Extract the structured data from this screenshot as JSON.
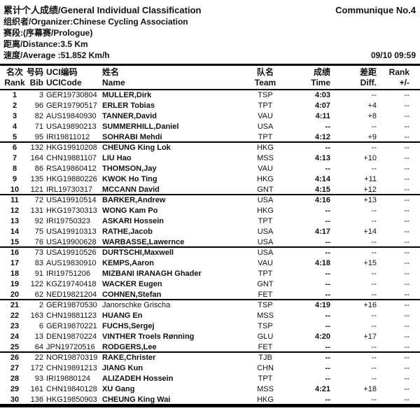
{
  "header": {
    "title": "累计个人成绩/General Individual Classification",
    "communique": "Communique No.4",
    "organizer": "组织者/Organizer:Chinese Cycling Association",
    "stage": "赛段:(序幕赛/Prologue)",
    "distance": "距离/Distance:3.5 Km",
    "average": "速度/Average :51.852 Km/h",
    "datetime": "09/10 09:59"
  },
  "colors": {
    "text": "#111111",
    "line": "#000000",
    "background": "#ffffff"
  },
  "table": {
    "columns": [
      {
        "cn": "名次",
        "en": "Rank"
      },
      {
        "cn": "号码",
        "en": "Bib"
      },
      {
        "cn": "UCI编码",
        "en": "UCICode"
      },
      {
        "cn": "姓名",
        "en": "Name"
      },
      {
        "cn": "队名",
        "en": "Team"
      },
      {
        "cn": "成绩",
        "en": "Time"
      },
      {
        "cn": "差距",
        "en": "Diff."
      },
      {
        "cn": "Rank",
        "en": "+/-"
      }
    ],
    "rows": [
      {
        "rank": "1",
        "bib": "3",
        "uci": "GER19730804",
        "name": "MULLER,Dirk",
        "team": "TSP",
        "time": "4:03",
        "diff": "--",
        "change": "--"
      },
      {
        "rank": "2",
        "bib": "96",
        "uci": "GER19790517",
        "name": "ERLER Tobias",
        "team": "TPT",
        "time": "4:07",
        "diff": "+4",
        "change": "--"
      },
      {
        "rank": "3",
        "bib": "82",
        "uci": "AUS19840930",
        "name": "TANNER,David",
        "team": "VAU",
        "time": "4:11",
        "diff": "+8",
        "change": "--"
      },
      {
        "rank": "4",
        "bib": "71",
        "uci": "USA19890213",
        "name": "SUMMERHILL,Daniel",
        "team": "USA",
        "time": "--",
        "diff": "--",
        "change": "--"
      },
      {
        "rank": "5",
        "bib": "95",
        "uci": "IRI19811012",
        "name": "SOHRABI Mehdi",
        "team": "TPT",
        "time": "4:12",
        "diff": "+9",
        "change": "--"
      },
      {
        "rank": "6",
        "bib": "132",
        "uci": "HKG19910208",
        "name": "CHEUNG King Lok",
        "team": "HKG",
        "time": "--",
        "diff": "--",
        "change": "--"
      },
      {
        "rank": "7",
        "bib": "164",
        "uci": "CHN19881107",
        "name": "LIU Hao",
        "team": "MSS",
        "time": "4:13",
        "diff": "+10",
        "change": "--"
      },
      {
        "rank": "8",
        "bib": "86",
        "uci": "RSA19860412",
        "name": "THOMSON,Jay",
        "team": "VAU",
        "time": "--",
        "diff": "--",
        "change": "--"
      },
      {
        "rank": "9",
        "bib": "135",
        "uci": "HKG19880226",
        "name": "KWOK Ho Ting",
        "team": "HKG",
        "time": "4:14",
        "diff": "+11",
        "change": "--"
      },
      {
        "rank": "10",
        "bib": "121",
        "uci": "IRL19730317",
        "name": "MCCANN David",
        "team": "GNT",
        "time": "4:15",
        "diff": "+12",
        "change": "--"
      },
      {
        "rank": "11",
        "bib": "72",
        "uci": "USA19910514",
        "name": "BARKER,Andrew",
        "team": "USA",
        "time": "4:16",
        "diff": "+13",
        "change": "--"
      },
      {
        "rank": "12",
        "bib": "131",
        "uci": "HKG19730313",
        "name": "WONG Kam Po",
        "team": "HKG",
        "time": "--",
        "diff": "--",
        "change": "--"
      },
      {
        "rank": "13",
        "bib": "92",
        "uci": "IRI19750323",
        "name": "ASKARI Hossein",
        "team": "TPT",
        "time": "--",
        "diff": "--",
        "change": "--"
      },
      {
        "rank": "14",
        "bib": "75",
        "uci": "USA19910313",
        "name": "RATHE,Jacob",
        "team": "USA",
        "time": "4:17",
        "diff": "+14",
        "change": "--"
      },
      {
        "rank": "15",
        "bib": "76",
        "uci": "USA19900628",
        "name": "WARBASSE,Lawernce",
        "team": "USA",
        "time": "--",
        "diff": "--",
        "change": "--"
      },
      {
        "rank": "16",
        "bib": "73",
        "uci": "USA19910526",
        "name": "DURTSCHI,Maxwell",
        "team": "USA",
        "time": "--",
        "diff": "--",
        "change": "--"
      },
      {
        "rank": "17",
        "bib": "83",
        "uci": "AUS19830910",
        "name": "KEMPS,Aaron",
        "team": "VAU",
        "time": "4:18",
        "diff": "+15",
        "change": "--"
      },
      {
        "rank": "18",
        "bib": "91",
        "uci": "IRI19751206",
        "name": "MIZBANI IRANAGH Ghader",
        "team": "TPT",
        "time": "--",
        "diff": "--",
        "change": "--"
      },
      {
        "rank": "19",
        "bib": "122",
        "uci": "KGZ19740418",
        "name": "WACKER Eugen",
        "team": "GNT",
        "time": "--",
        "diff": "--",
        "change": "--"
      },
      {
        "rank": "20",
        "bib": "62",
        "uci": "NED19821204",
        "name": "COHNEN,Stefan",
        "team": "FET",
        "time": "--",
        "diff": "--",
        "change": "--"
      },
      {
        "rank": "21",
        "bib": "2",
        "uci": "GER19870530",
        "name": "Janorschke Grischa",
        "team": "TSP",
        "time": "4:19",
        "diff": "+16",
        "change": "--",
        "name_regular": true
      },
      {
        "rank": "22",
        "bib": "163",
        "uci": "CHN19881123",
        "name": "HUANG En",
        "team": "MSS",
        "time": "--",
        "diff": "--",
        "change": "--"
      },
      {
        "rank": "23",
        "bib": "6",
        "uci": "GER19870221",
        "name": "FUCHS,Sergej",
        "team": "TSP",
        "time": "--",
        "diff": "--",
        "change": "--"
      },
      {
        "rank": "24",
        "bib": "13",
        "uci": "DEN19870224",
        "name": "VINTHER Troels Rønning",
        "team": "GLU",
        "time": "4:20",
        "diff": "+17",
        "change": "--"
      },
      {
        "rank": "25",
        "bib": "64",
        "uci": "JPN19720516",
        "name": "RODGERS,Lee",
        "team": "FET",
        "time": "--",
        "diff": "--",
        "change": "--"
      },
      {
        "rank": "26",
        "bib": "22",
        "uci": "NOR19870319",
        "name": "RAKE,Christer",
        "team": "TJB",
        "time": "--",
        "diff": "--",
        "change": "--"
      },
      {
        "rank": "27",
        "bib": "172",
        "uci": "CHN19891213",
        "name": "JIANG Kun",
        "team": "CHN",
        "time": "--",
        "diff": "--",
        "change": "--"
      },
      {
        "rank": "28",
        "bib": "93",
        "uci": "IRI19880124",
        "name": "ALIZADEH Hossein",
        "team": "TPT",
        "time": "--",
        "diff": "--",
        "change": "--"
      },
      {
        "rank": "29",
        "bib": "161",
        "uci": "CHN19840128",
        "name": "XU Gang",
        "team": "MSS",
        "time": "4:21",
        "diff": "+18",
        "change": "--"
      },
      {
        "rank": "30",
        "bib": "136",
        "uci": "HKG19850903",
        "name": "CHEUNG King Wai",
        "team": "HKG",
        "time": "--",
        "diff": "--",
        "change": "--"
      }
    ]
  }
}
